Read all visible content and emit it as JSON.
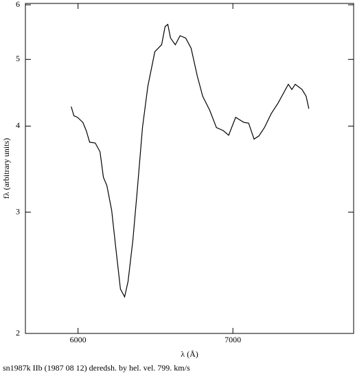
{
  "chart_data": {
    "type": "line",
    "xlabel": "λ (Å)",
    "ylabel": "fλ (arbitrary units)",
    "caption": "sn1987k IIb (1987 08 12) deredsh. by hel. vel.   799. km/s",
    "log_y": true,
    "xlim": [
      5660,
      7780
    ],
    "xticks": [
      6000,
      7000
    ],
    "ylim": [
      2,
      6
    ],
    "yticks": [
      2,
      3,
      4,
      5,
      6
    ],
    "series": [
      {
        "color": "#000000",
        "x": [
          5956,
          5973,
          5996,
          6031,
          6053,
          6075,
          6111,
          6142,
          6164,
          6186,
          6217,
          6243,
          6274,
          6301,
          6323,
          6354,
          6385,
          6416,
          6451,
          6496,
          6540,
          6562,
          6580,
          6597,
          6628,
          6659,
          6695,
          6730,
          6770,
          6805,
          6850,
          6894,
          6938,
          6973,
          7018,
          7071,
          7102,
          7137,
          7168,
          7204,
          7248,
          7292,
          7358,
          7381,
          7403,
          7447,
          7473,
          7491
        ],
        "values": [
          4.27,
          4.14,
          4.12,
          4.05,
          3.94,
          3.79,
          3.78,
          3.67,
          3.37,
          3.28,
          3.02,
          2.67,
          2.32,
          2.26,
          2.38,
          2.73,
          3.28,
          3.98,
          4.57,
          5.13,
          5.25,
          5.58,
          5.62,
          5.37,
          5.25,
          5.41,
          5.37,
          5.19,
          4.73,
          4.42,
          4.22,
          3.98,
          3.94,
          3.88,
          4.12,
          4.05,
          4.04,
          3.83,
          3.87,
          3.98,
          4.17,
          4.32,
          4.6,
          4.52,
          4.6,
          4.52,
          4.42,
          4.24
        ]
      }
    ]
  }
}
